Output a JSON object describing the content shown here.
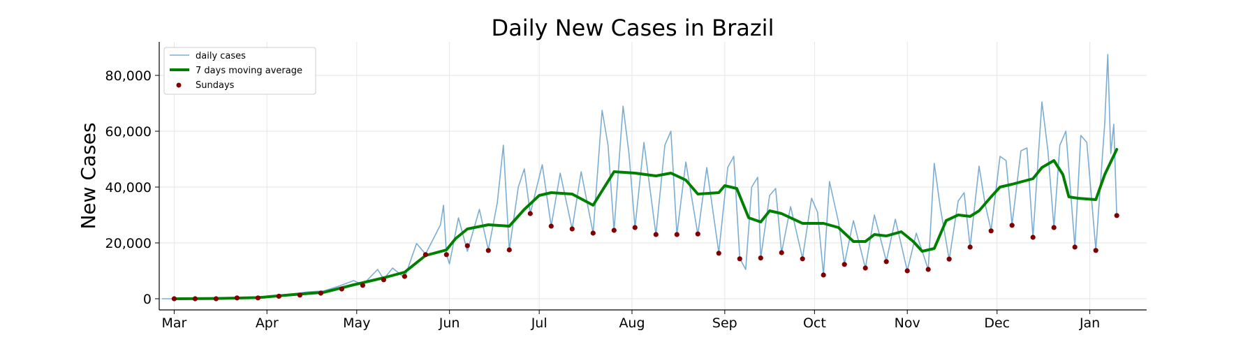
{
  "chart_data": {
    "type": "line",
    "title": "Daily New Cases in Brazil",
    "xlabel": "",
    "ylabel": "New Cases",
    "x_range": [
      "2020-02-25",
      "2021-01-20"
    ],
    "ylim": [
      -4000,
      92000
    ],
    "grid": true,
    "legend_position": "top-left",
    "x_ticks": [
      {
        "date": "2020-03-01",
        "label": "Mar"
      },
      {
        "date": "2020-04-01",
        "label": "Apr"
      },
      {
        "date": "2020-05-01",
        "label": "May"
      },
      {
        "date": "2020-06-01",
        "label": "Jun"
      },
      {
        "date": "2020-07-01",
        "label": "Jul"
      },
      {
        "date": "2020-08-01",
        "label": "Aug"
      },
      {
        "date": "2020-09-01",
        "label": "Sep"
      },
      {
        "date": "2020-10-01",
        "label": "Oct"
      },
      {
        "date": "2020-11-01",
        "label": "Nov"
      },
      {
        "date": "2020-12-01",
        "label": "Dec"
      },
      {
        "date": "2021-01-01",
        "label": "Jan"
      }
    ],
    "y_ticks": [
      {
        "value": 0,
        "label": "0"
      },
      {
        "value": 20000,
        "label": "20,000"
      },
      {
        "value": 40000,
        "label": "40,000"
      },
      {
        "value": 60000,
        "label": "60,000"
      },
      {
        "value": 80000,
        "label": "80,000"
      }
    ],
    "series": [
      {
        "name": "daily cases",
        "kind": "line",
        "color": "#7aadd4",
        "points": [
          [
            "2020-02-26",
            0
          ],
          [
            "2020-03-05",
            0
          ],
          [
            "2020-03-15",
            100
          ],
          [
            "2020-03-22",
            300
          ],
          [
            "2020-03-29",
            400
          ],
          [
            "2020-04-05",
            1200
          ],
          [
            "2020-04-10",
            1800
          ],
          [
            "2020-04-15",
            2500
          ],
          [
            "2020-04-20",
            2800
          ],
          [
            "2020-04-25",
            4500
          ],
          [
            "2020-04-30",
            6500
          ],
          [
            "2020-05-03",
            5000
          ],
          [
            "2020-05-08",
            10500
          ],
          [
            "2020-05-10",
            7000
          ],
          [
            "2020-05-13",
            11000
          ],
          [
            "2020-05-17",
            7500
          ],
          [
            "2020-05-21",
            19800
          ],
          [
            "2020-05-24",
            16000
          ],
          [
            "2020-05-29",
            26500
          ],
          [
            "2020-05-30",
            33500
          ],
          [
            "2020-05-31",
            16000
          ],
          [
            "2020-06-01",
            12500
          ],
          [
            "2020-06-04",
            29000
          ],
          [
            "2020-06-07",
            17000
          ],
          [
            "2020-06-11",
            32000
          ],
          [
            "2020-06-14",
            17500
          ],
          [
            "2020-06-17",
            34500
          ],
          [
            "2020-06-19",
            55000
          ],
          [
            "2020-06-21",
            17500
          ],
          [
            "2020-06-24",
            40000
          ],
          [
            "2020-06-26",
            46500
          ],
          [
            "2020-06-28",
            30500
          ],
          [
            "2020-07-02",
            48000
          ],
          [
            "2020-07-05",
            26000
          ],
          [
            "2020-07-08",
            45000
          ],
          [
            "2020-07-12",
            25000
          ],
          [
            "2020-07-15",
            45500
          ],
          [
            "2020-07-19",
            23500
          ],
          [
            "2020-07-22",
            67500
          ],
          [
            "2020-07-24",
            55000
          ],
          [
            "2020-07-26",
            24500
          ],
          [
            "2020-07-29",
            69000
          ],
          [
            "2020-07-31",
            52000
          ],
          [
            "2020-08-02",
            25500
          ],
          [
            "2020-08-05",
            56000
          ],
          [
            "2020-08-09",
            23000
          ],
          [
            "2020-08-12",
            55000
          ],
          [
            "2020-08-14",
            60000
          ],
          [
            "2020-08-16",
            23000
          ],
          [
            "2020-08-19",
            49000
          ],
          [
            "2020-08-23",
            23000
          ],
          [
            "2020-08-26",
            47000
          ],
          [
            "2020-08-30",
            16500
          ],
          [
            "2020-09-02",
            47000
          ],
          [
            "2020-09-04",
            51000
          ],
          [
            "2020-09-06",
            14500
          ],
          [
            "2020-09-08",
            10500
          ],
          [
            "2020-09-10",
            40000
          ],
          [
            "2020-09-12",
            43500
          ],
          [
            "2020-09-13",
            14500
          ],
          [
            "2020-09-16",
            37000
          ],
          [
            "2020-09-18",
            39500
          ],
          [
            "2020-09-20",
            16500
          ],
          [
            "2020-09-23",
            33000
          ],
          [
            "2020-09-27",
            14500
          ],
          [
            "2020-09-30",
            36000
          ],
          [
            "2020-10-02",
            31000
          ],
          [
            "2020-10-04",
            8500
          ],
          [
            "2020-10-06",
            42000
          ],
          [
            "2020-10-09",
            27500
          ],
          [
            "2020-10-11",
            12500
          ],
          [
            "2020-10-14",
            28000
          ],
          [
            "2020-10-18",
            11000
          ],
          [
            "2020-10-21",
            30000
          ],
          [
            "2020-10-25",
            13500
          ],
          [
            "2020-10-28",
            28500
          ],
          [
            "2020-11-01",
            10000
          ],
          [
            "2020-11-04",
            23500
          ],
          [
            "2020-11-08",
            10500
          ],
          [
            "2020-11-10",
            48500
          ],
          [
            "2020-11-12",
            33000
          ],
          [
            "2020-11-15",
            14000
          ],
          [
            "2020-11-18",
            35000
          ],
          [
            "2020-11-20",
            38000
          ],
          [
            "2020-11-22",
            18500
          ],
          [
            "2020-11-25",
            47500
          ],
          [
            "2020-11-27",
            34000
          ],
          [
            "2020-11-29",
            24500
          ],
          [
            "2020-12-02",
            51000
          ],
          [
            "2020-12-04",
            49500
          ],
          [
            "2020-12-06",
            26500
          ],
          [
            "2020-12-09",
            53000
          ],
          [
            "2020-12-11",
            54000
          ],
          [
            "2020-12-13",
            22000
          ],
          [
            "2020-12-16",
            70500
          ],
          [
            "2020-12-18",
            53000
          ],
          [
            "2020-12-20",
            25500
          ],
          [
            "2020-12-22",
            55000
          ],
          [
            "2020-12-24",
            60000
          ],
          [
            "2020-12-27",
            18500
          ],
          [
            "2020-12-29",
            58500
          ],
          [
            "2020-12-31",
            56000
          ],
          [
            "2021-01-03",
            17500
          ],
          [
            "2021-01-06",
            63000
          ],
          [
            "2021-01-07",
            87500
          ],
          [
            "2021-01-08",
            52000
          ],
          [
            "2021-01-09",
            62500
          ],
          [
            "2021-01-10",
            29500
          ]
        ]
      },
      {
        "name": "7 days moving average",
        "kind": "line",
        "color": "#008000",
        "points": [
          [
            "2020-03-01",
            0
          ],
          [
            "2020-03-15",
            100
          ],
          [
            "2020-03-29",
            400
          ],
          [
            "2020-04-10",
            1500
          ],
          [
            "2020-04-20",
            2300
          ],
          [
            "2020-04-30",
            5000
          ],
          [
            "2020-05-10",
            7500
          ],
          [
            "2020-05-17",
            9500
          ],
          [
            "2020-05-24",
            15500
          ],
          [
            "2020-05-31",
            17500
          ],
          [
            "2020-06-03",
            21500
          ],
          [
            "2020-06-07",
            25000
          ],
          [
            "2020-06-14",
            26500
          ],
          [
            "2020-06-21",
            26000
          ],
          [
            "2020-06-26",
            32000
          ],
          [
            "2020-07-01",
            37000
          ],
          [
            "2020-07-05",
            38000
          ],
          [
            "2020-07-12",
            37500
          ],
          [
            "2020-07-19",
            33500
          ],
          [
            "2020-07-26",
            45500
          ],
          [
            "2020-08-02",
            45000
          ],
          [
            "2020-08-09",
            44000
          ],
          [
            "2020-08-14",
            45000
          ],
          [
            "2020-08-19",
            42500
          ],
          [
            "2020-08-23",
            37500
          ],
          [
            "2020-08-30",
            38000
          ],
          [
            "2020-09-01",
            40500
          ],
          [
            "2020-09-05",
            39500
          ],
          [
            "2020-09-09",
            29000
          ],
          [
            "2020-09-13",
            27500
          ],
          [
            "2020-09-16",
            31500
          ],
          [
            "2020-09-20",
            30500
          ],
          [
            "2020-09-27",
            27000
          ],
          [
            "2020-10-04",
            27000
          ],
          [
            "2020-10-09",
            25500
          ],
          [
            "2020-10-14",
            20500
          ],
          [
            "2020-10-18",
            20500
          ],
          [
            "2020-10-21",
            23000
          ],
          [
            "2020-10-25",
            22500
          ],
          [
            "2020-10-30",
            24000
          ],
          [
            "2020-11-03",
            20500
          ],
          [
            "2020-11-06",
            17000
          ],
          [
            "2020-11-10",
            18000
          ],
          [
            "2020-11-14",
            28000
          ],
          [
            "2020-11-18",
            30000
          ],
          [
            "2020-11-22",
            29500
          ],
          [
            "2020-11-25",
            31500
          ],
          [
            "2020-11-29",
            36500
          ],
          [
            "2020-12-02",
            40000
          ],
          [
            "2020-12-06",
            41000
          ],
          [
            "2020-12-13",
            43000
          ],
          [
            "2020-12-16",
            47000
          ],
          [
            "2020-12-20",
            49500
          ],
          [
            "2020-12-23",
            44500
          ],
          [
            "2020-12-25",
            36500
          ],
          [
            "2020-12-28",
            36000
          ],
          [
            "2021-01-03",
            35500
          ],
          [
            "2021-01-06",
            44500
          ],
          [
            "2021-01-10",
            53500
          ]
        ]
      },
      {
        "name": "Sundays",
        "kind": "scatter",
        "color": "#800000",
        "points": [
          [
            "2020-03-01",
            0
          ],
          [
            "2020-03-08",
            0
          ],
          [
            "2020-03-15",
            0
          ],
          [
            "2020-03-22",
            300
          ],
          [
            "2020-03-29",
            300
          ],
          [
            "2020-04-05",
            900
          ],
          [
            "2020-04-12",
            1300
          ],
          [
            "2020-04-19",
            2000
          ],
          [
            "2020-04-26",
            3500
          ],
          [
            "2020-05-03",
            4800
          ],
          [
            "2020-05-10",
            6800
          ],
          [
            "2020-05-17",
            8000
          ],
          [
            "2020-05-24",
            15800
          ],
          [
            "2020-05-31",
            15800
          ],
          [
            "2020-06-07",
            19000
          ],
          [
            "2020-06-14",
            17300
          ],
          [
            "2020-06-21",
            17500
          ],
          [
            "2020-06-28",
            30500
          ],
          [
            "2020-07-05",
            26000
          ],
          [
            "2020-07-12",
            25000
          ],
          [
            "2020-07-19",
            23500
          ],
          [
            "2020-07-26",
            24500
          ],
          [
            "2020-08-02",
            25500
          ],
          [
            "2020-08-09",
            23000
          ],
          [
            "2020-08-16",
            23000
          ],
          [
            "2020-08-23",
            23200
          ],
          [
            "2020-08-30",
            16300
          ],
          [
            "2020-09-06",
            14300
          ],
          [
            "2020-09-13",
            14600
          ],
          [
            "2020-09-20",
            16500
          ],
          [
            "2020-09-27",
            14300
          ],
          [
            "2020-10-04",
            8500
          ],
          [
            "2020-10-11",
            12300
          ],
          [
            "2020-10-18",
            11000
          ],
          [
            "2020-10-25",
            13300
          ],
          [
            "2020-11-01",
            10000
          ],
          [
            "2020-11-08",
            10500
          ],
          [
            "2020-11-15",
            14200
          ],
          [
            "2020-11-22",
            18500
          ],
          [
            "2020-11-29",
            24300
          ],
          [
            "2020-12-06",
            26300
          ],
          [
            "2020-12-13",
            22000
          ],
          [
            "2020-12-20",
            25500
          ],
          [
            "2020-12-27",
            18500
          ],
          [
            "2021-01-03",
            17300
          ],
          [
            "2021-01-10",
            29800
          ]
        ]
      }
    ]
  }
}
